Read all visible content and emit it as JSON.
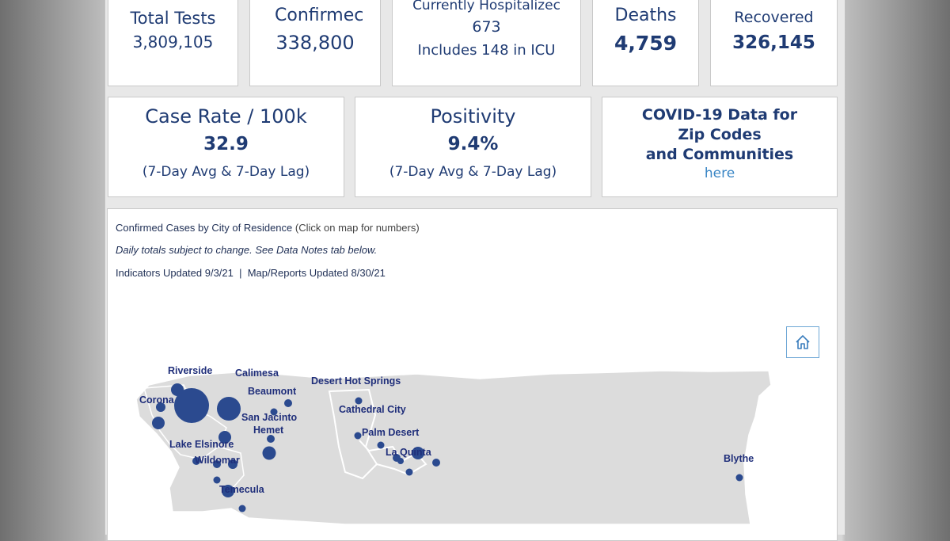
{
  "stats": {
    "total_tests": {
      "label": "Total Tests",
      "value": "3,809,105"
    },
    "confirmed": {
      "label": "Confirmec",
      "value": "338,800"
    },
    "hospitalized": {
      "label": "Currently Hospitalizec",
      "value": "673",
      "note": "Includes 148 in ICU"
    },
    "deaths": {
      "label": "Deaths",
      "value": "4,759"
    },
    "recovered": {
      "label": "Recovered",
      "value": "326,145"
    }
  },
  "rates": {
    "case_rate": {
      "label": "Case Rate / 100k",
      "value": "32.9",
      "note": "(7-Day Avg & 7-Day Lag)"
    },
    "positivity": {
      "label": "Positivity",
      "value": "9.4%",
      "note": "(7-Day Avg & 7-Day Lag)"
    },
    "zip": {
      "line1": "COVID-19 Data for",
      "line2": "Zip Codes",
      "line3": "and Communities",
      "link": "here"
    }
  },
  "map": {
    "title": "Confirmed Cases by City of Residence",
    "title_hint": "(Click on map for numbers)",
    "note": "Daily totals subject to change. See Data Notes tab below.",
    "updated": "Indicators Updated 9/3/21  |  Map/Reports Updated 8/30/21",
    "home_icon": "home-icon",
    "colors": {
      "land": "#dcdcdc",
      "bubble": "#2b4a8f",
      "label": "#1f2e7a"
    },
    "cities": [
      "Riverside",
      "Calimesa",
      "Corona",
      "Beaumont",
      "San Jacinto",
      "Hemet",
      "Lake Elsinore",
      "Wildomar",
      "Temecula",
      "Desert Hot Springs",
      "Cathedral City",
      "Palm Desert",
      "La Quinta",
      "Blythe"
    ]
  }
}
